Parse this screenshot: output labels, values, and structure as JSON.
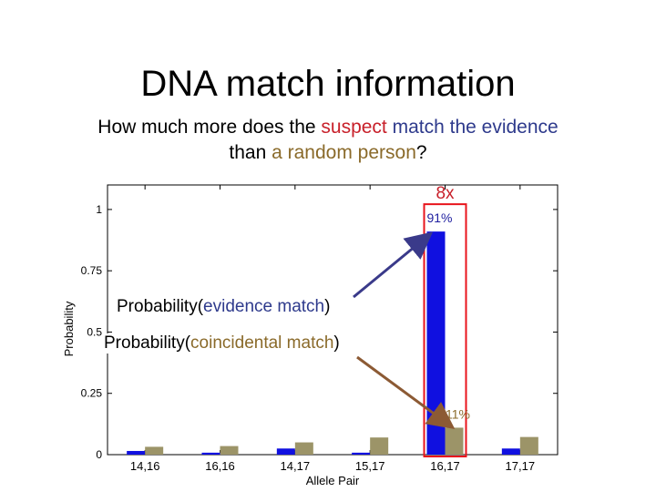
{
  "slide": {
    "title": "DNA match information",
    "subtitle": {
      "part1": "How much more does the ",
      "suspect": "suspect",
      "match_text": " match the evidence",
      "part2": "than ",
      "random_person": "a random person",
      "part3": "?"
    }
  },
  "annotations": {
    "evidence": {
      "prefix": "Probability(",
      "term": "evidence match",
      "suffix": ")"
    },
    "coincidental": {
      "prefix": "Probability(",
      "term": "coincidental match",
      "suffix": ")"
    },
    "ratio": "8x"
  },
  "colors": {
    "suspect": "#c8202a",
    "evidence": "#2e3a8c",
    "random": "#8a6a2a",
    "series_blue": "#1010e0",
    "series_olive": "#9c9468",
    "highlight_box": "#e8141c",
    "arrow_evidence": "#3a3a8a",
    "arrow_coincidental": "#8c5a34"
  },
  "chart_data": {
    "type": "bar",
    "ylabel": "Probability",
    "xlabel": "Allele Pair",
    "categories": [
      "14,16",
      "16,16",
      "14,17",
      "15,17",
      "16,17",
      "17,17"
    ],
    "ylim": [
      0,
      1.1
    ],
    "yticks": [
      {
        "value": 0,
        "label": "0"
      },
      {
        "value": 0.25,
        "label": "0.25"
      },
      {
        "value": 0.5,
        "label": "0.5"
      },
      {
        "value": 0.75,
        "label": "0.75"
      },
      {
        "value": 1,
        "label": "1"
      }
    ],
    "series": [
      {
        "values": [
          0.015,
          0.008,
          0.025,
          0.008,
          0.91,
          0.025
        ]
      },
      {
        "values": [
          0.032,
          0.035,
          0.05,
          0.07,
          0.11,
          0.072
        ]
      }
    ],
    "data_labels": [
      {
        "category": "16,17",
        "series": 0,
        "text": "91%"
      },
      {
        "category": "16,17",
        "series": 1,
        "text": "11%"
      }
    ],
    "highlight_category": "16,17"
  }
}
